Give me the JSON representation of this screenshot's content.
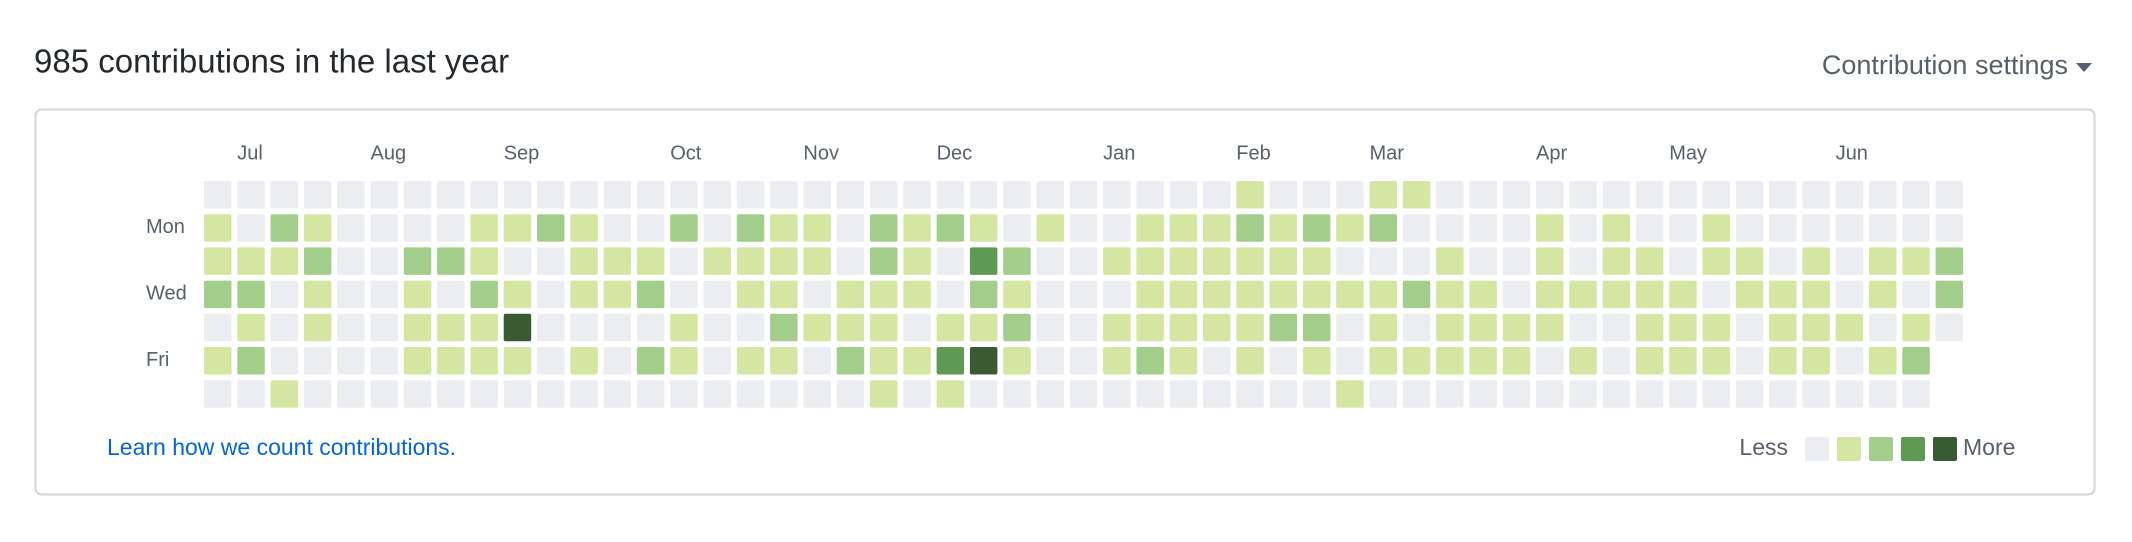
{
  "header": {
    "title": "985 contributions in the last year",
    "settings": "Contribution settings"
  },
  "calendar": {
    "day_labels": [
      null,
      "Mon",
      null,
      "Wed",
      null,
      "Fri",
      null
    ],
    "level_colors": [
      "#ebedf0",
      "#d5e5a2",
      "#a3cd8a",
      "#5f9a55",
      "#3a5a34"
    ],
    "weeks": [
      {
        "days": [
          0,
          1,
          1,
          2,
          0,
          1,
          0
        ]
      },
      {
        "month": "Jul",
        "days": [
          0,
          0,
          1,
          2,
          1,
          2,
          0
        ]
      },
      {
        "days": [
          0,
          2,
          1,
          0,
          0,
          0,
          1
        ]
      },
      {
        "days": [
          0,
          1,
          2,
          1,
          1,
          0,
          0
        ]
      },
      {
        "days": [
          0,
          0,
          0,
          0,
          0,
          0,
          0
        ]
      },
      {
        "month": "Aug",
        "days": [
          0,
          0,
          0,
          0,
          0,
          0,
          0
        ]
      },
      {
        "days": [
          0,
          0,
          2,
          1,
          1,
          1,
          0
        ]
      },
      {
        "days": [
          0,
          0,
          2,
          0,
          1,
          1,
          0
        ]
      },
      {
        "days": [
          0,
          1,
          1,
          2,
          1,
          1,
          0
        ]
      },
      {
        "month": "Sep",
        "days": [
          0,
          1,
          0,
          1,
          4,
          1,
          0
        ]
      },
      {
        "days": [
          0,
          2,
          0,
          0,
          0,
          0,
          0
        ]
      },
      {
        "days": [
          0,
          1,
          1,
          1,
          0,
          1,
          0
        ]
      },
      {
        "days": [
          0,
          0,
          1,
          1,
          0,
          0,
          0
        ]
      },
      {
        "days": [
          0,
          0,
          1,
          2,
          0,
          2,
          0
        ]
      },
      {
        "month": "Oct",
        "days": [
          0,
          2,
          0,
          0,
          1,
          1,
          0
        ]
      },
      {
        "days": [
          0,
          0,
          1,
          0,
          0,
          0,
          0
        ]
      },
      {
        "days": [
          0,
          2,
          1,
          1,
          0,
          1,
          0
        ]
      },
      {
        "days": [
          0,
          1,
          1,
          1,
          2,
          1,
          0
        ]
      },
      {
        "month": "Nov",
        "days": [
          0,
          1,
          1,
          0,
          1,
          0,
          0
        ]
      },
      {
        "days": [
          0,
          0,
          0,
          1,
          1,
          2,
          0
        ]
      },
      {
        "days": [
          0,
          2,
          2,
          1,
          1,
          1,
          1
        ]
      },
      {
        "days": [
          0,
          1,
          1,
          1,
          0,
          1,
          0
        ]
      },
      {
        "month": "Dec",
        "days": [
          0,
          2,
          0,
          0,
          1,
          3,
          1
        ]
      },
      {
        "days": [
          0,
          1,
          3,
          2,
          1,
          4,
          0
        ]
      },
      {
        "days": [
          0,
          0,
          2,
          1,
          2,
          1,
          0
        ]
      },
      {
        "days": [
          0,
          1,
          0,
          0,
          0,
          0,
          0
        ]
      },
      {
        "days": [
          0,
          0,
          0,
          0,
          0,
          0,
          0
        ]
      },
      {
        "month": "Jan",
        "days": [
          0,
          0,
          1,
          0,
          1,
          1,
          0
        ]
      },
      {
        "days": [
          0,
          1,
          1,
          1,
          1,
          2,
          0
        ]
      },
      {
        "days": [
          0,
          1,
          1,
          1,
          1,
          1,
          0
        ]
      },
      {
        "days": [
          0,
          1,
          1,
          1,
          1,
          0,
          0
        ]
      },
      {
        "month": "Feb",
        "days": [
          1,
          2,
          1,
          1,
          1,
          1,
          0
        ]
      },
      {
        "days": [
          0,
          1,
          1,
          1,
          2,
          0,
          0
        ]
      },
      {
        "days": [
          0,
          2,
          1,
          1,
          2,
          1,
          0
        ]
      },
      {
        "days": [
          0,
          1,
          0,
          1,
          0,
          0,
          1
        ]
      },
      {
        "month": "Mar",
        "days": [
          1,
          2,
          0,
          1,
          1,
          1,
          0
        ]
      },
      {
        "days": [
          1,
          0,
          0,
          2,
          0,
          1,
          0
        ]
      },
      {
        "days": [
          0,
          0,
          1,
          1,
          1,
          1,
          0
        ]
      },
      {
        "days": [
          0,
          0,
          0,
          1,
          1,
          1,
          0
        ]
      },
      {
        "days": [
          0,
          0,
          0,
          0,
          1,
          1,
          0
        ]
      },
      {
        "month": "Apr",
        "days": [
          0,
          1,
          1,
          1,
          1,
          0,
          0
        ]
      },
      {
        "days": [
          0,
          0,
          0,
          1,
          0,
          1,
          0
        ]
      },
      {
        "days": [
          0,
          1,
          1,
          1,
          0,
          0,
          0
        ]
      },
      {
        "days": [
          0,
          0,
          1,
          1,
          1,
          1,
          0
        ]
      },
      {
        "month": "May",
        "days": [
          0,
          0,
          0,
          1,
          1,
          1,
          0
        ]
      },
      {
        "days": [
          0,
          1,
          1,
          0,
          1,
          1,
          0
        ]
      },
      {
        "days": [
          0,
          0,
          1,
          1,
          0,
          0,
          0
        ]
      },
      {
        "days": [
          0,
          0,
          0,
          1,
          1,
          1,
          0
        ]
      },
      {
        "days": [
          0,
          0,
          1,
          1,
          1,
          1,
          0
        ]
      },
      {
        "month": "Jun",
        "days": [
          0,
          0,
          0,
          0,
          1,
          0,
          0
        ]
      },
      {
        "days": [
          0,
          0,
          1,
          1,
          0,
          1,
          0
        ]
      },
      {
        "days": [
          0,
          0,
          1,
          0,
          1,
          2,
          0
        ]
      },
      {
        "days": [
          0,
          0,
          2,
          2,
          0
        ]
      }
    ]
  },
  "footer": {
    "link": "Learn how we count contributions.",
    "less": "Less",
    "more": "More"
  }
}
